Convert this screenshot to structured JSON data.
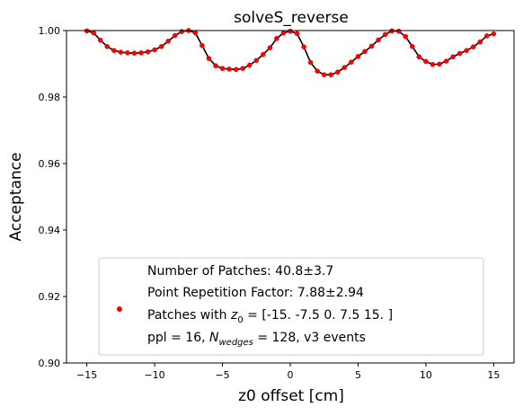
{
  "chart_data": {
    "type": "line",
    "title": "solveS_reverse",
    "xlabel": "z0 offset [cm]",
    "ylabel": "Acceptance",
    "xlim": [
      -16.5,
      16.5
    ],
    "ylim": [
      0.9,
      1.0
    ],
    "xticks": [
      -15,
      -10,
      -5,
      0,
      5,
      10,
      15
    ],
    "xtick_labels": [
      "−15",
      "−10",
      "−5",
      "0",
      "5",
      "10",
      "15"
    ],
    "yticks": [
      0.9,
      0.92,
      0.94,
      0.96,
      0.98,
      1.0
    ],
    "ytick_labels": [
      "0.90",
      "0.92",
      "0.94",
      "0.96",
      "0.98",
      "1.00"
    ],
    "grid": false,
    "legend_position": "lower-center",
    "colors": {
      "markers": "#ff0000",
      "marker_edge": "#cc0000",
      "line": "#000000",
      "legend_border": "#cccccc"
    },
    "legend": {
      "marker_color": "#ff0000",
      "lines": [
        "Number of Patches: 40.8±3.7",
        "Point Repetition Factor: 7.88±2.94",
        "Patches with ",
        "z",
        "0",
        " = [-15.    -7.5    0.     7.5   15. ]",
        "ppl = 16, ",
        "N",
        "wedges",
        " = 128, v3 events"
      ]
    },
    "series": [
      {
        "x": [
          -15.0,
          -14.5,
          -14.0,
          -13.5,
          -13.0,
          -12.5,
          -12.0,
          -11.5,
          -11.0,
          -10.5,
          -10.0,
          -9.5,
          -9.0,
          -8.5,
          -8.0,
          -7.5,
          -7.0,
          -6.5,
          -6.0,
          -5.5,
          -5.0,
          -4.5,
          -4.0,
          -3.5,
          -3.0,
          -2.5,
          -2.0,
          -1.5,
          -1.0,
          -0.5,
          0.0,
          0.5,
          1.0,
          1.5,
          2.0,
          2.5,
          3.0,
          3.5,
          4.0,
          4.5,
          5.0,
          5.5,
          6.0,
          6.5,
          7.0,
          7.5,
          8.0,
          8.5,
          9.0,
          9.5,
          10.0,
          10.5,
          11.0,
          11.5,
          12.0,
          12.5,
          13.0,
          13.5,
          14.0,
          14.5,
          15.0
        ],
        "values": [
          0.9999,
          0.9993,
          0.9971,
          0.9952,
          0.994,
          0.9935,
          0.9933,
          0.9932,
          0.9933,
          0.9936,
          0.9942,
          0.9952,
          0.9968,
          0.9985,
          0.9997,
          1.0,
          0.9993,
          0.9955,
          0.9916,
          0.9894,
          0.9886,
          0.9884,
          0.9883,
          0.9886,
          0.9896,
          0.991,
          0.9928,
          0.9948,
          0.9976,
          0.9993,
          0.9998,
          0.9991,
          0.9951,
          0.9904,
          0.9878,
          0.9867,
          0.9867,
          0.9875,
          0.9889,
          0.9905,
          0.9922,
          0.9937,
          0.9953,
          0.9972,
          0.9988,
          0.9999,
          0.9998,
          0.9982,
          0.9952,
          0.9921,
          0.9907,
          0.9898,
          0.9899,
          0.9908,
          0.9921,
          0.9931,
          0.994,
          0.9951,
          0.9966,
          0.9984,
          0.999
        ]
      }
    ]
  }
}
